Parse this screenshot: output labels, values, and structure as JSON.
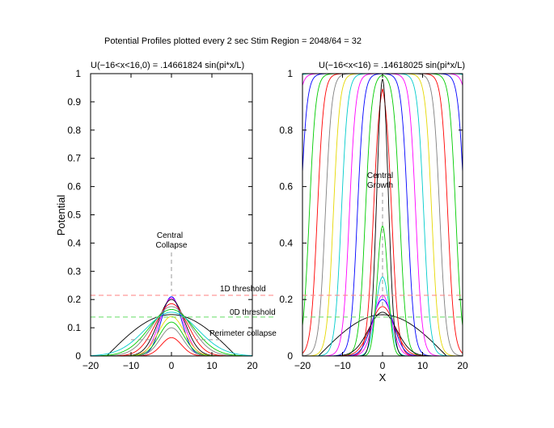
{
  "figure": {
    "suptitle": "Potential Profiles plotted every 2 sec  Stim Region = 2048/64 = 32",
    "colors": [
      "#000000",
      "#ff0000",
      "#00cc00",
      "#0000ff",
      "#ff00ff",
      "#00cccc",
      "#e6d800",
      "#808080"
    ]
  },
  "chart_data": [
    {
      "type": "line",
      "title": "U(−16<x<16,0) = .14661824 sin(pi*x/L)",
      "xlabel": "",
      "ylabel": "Potential",
      "xlim": [
        -20,
        20
      ],
      "ylim": [
        0,
        1
      ],
      "xticks": [
        "−20",
        "−10",
        "0",
        "10",
        "20"
      ],
      "yticks": [
        "0",
        "0.1",
        "0.2",
        "0.3",
        "0.4",
        "0.5",
        "0.6",
        "0.7",
        "0.8",
        "0.9",
        "1"
      ],
      "grid": false,
      "initial_profile": {
        "amplitude": 0.14661824,
        "half_width": 16
      },
      "profiles": [
        {
          "peak": 0.21,
          "sigma": 2.5,
          "color": "#0000ff"
        },
        {
          "peak": 0.205,
          "sigma": 2.9,
          "color": "#ff00ff"
        },
        {
          "peak": 0.2,
          "sigma": 3.3,
          "color": "#000000"
        },
        {
          "peak": 0.185,
          "sigma": 4.0,
          "color": "#ff0000"
        },
        {
          "peak": 0.175,
          "sigma": 4.8,
          "color": "#808080"
        },
        {
          "peak": 0.165,
          "sigma": 5.5,
          "color": "#00cc00"
        },
        {
          "peak": 0.155,
          "sigma": 6.5,
          "color": "#00cccc"
        },
        {
          "peak": 0.14,
          "sigma": 3.2,
          "color": "#e6d800"
        },
        {
          "peak": 0.12,
          "sigma": 3.0,
          "color": "#00cc00"
        },
        {
          "peak": 0.1,
          "sigma": 2.8,
          "color": "#808080"
        },
        {
          "peak": 0.065,
          "sigma": 2.5,
          "color": "#ff0000"
        }
      ],
      "reference_lines": [
        {
          "label": "1D threshold",
          "y": 0.215,
          "color": "#ff8080"
        },
        {
          "label": "0D threshold",
          "y": 0.138,
          "color": "#66dd66"
        }
      ],
      "annotations": {
        "central_collapse": {
          "line1": "Central",
          "line2": "Collapse",
          "x": 0,
          "y": 0.36
        },
        "perimeter_collapse": {
          "label": "Perimeter collapse",
          "x": 13,
          "y": 0.075
        }
      }
    },
    {
      "type": "line",
      "title": "U(−16<x<16) = .14618025 sin(pi*x/L)",
      "xlabel": "X",
      "ylabel": "",
      "xlim": [
        -20,
        20
      ],
      "ylim": [
        0,
        1
      ],
      "xticks": [
        "−20",
        "−10",
        "0",
        "10",
        "20"
      ],
      "yticks": [
        "0",
        "0.2",
        "0.4",
        "0.6",
        "0.8",
        "1"
      ],
      "grid": false,
      "initial_profile": {
        "amplitude": 0.14618025,
        "half_width": 16
      },
      "profiles": [
        {
          "peak": 0.155,
          "sigma": 3.5,
          "color": "#000000"
        },
        {
          "peak": 0.175,
          "sigma": 3.0,
          "color": "#ff0000"
        },
        {
          "peak": 0.2,
          "sigma": 2.6,
          "color": "#0000ff"
        },
        {
          "peak": 0.215,
          "sigma": 2.2,
          "color": "#ff00ff"
        },
        {
          "peak": 0.28,
          "sigma": 1.7,
          "color": "#00cccc"
        },
        {
          "peak": 0.46,
          "sigma": 1.3,
          "color": "#00cc00"
        },
        {
          "peak": 0.98,
          "sigma": 1.4,
          "color": "#000000"
        }
      ],
      "plateaus": [
        {
          "half_width": 2.3,
          "color": "#ff0000"
        },
        {
          "half_width": 4.3,
          "color": "#00cc00"
        },
        {
          "half_width": 6.3,
          "color": "#0000ff"
        },
        {
          "half_width": 8.3,
          "color": "#ff00ff"
        },
        {
          "half_width": 10.3,
          "color": "#00cccc"
        },
        {
          "half_width": 12.3,
          "color": "#e6d800"
        },
        {
          "half_width": 14.3,
          "color": "#808080"
        },
        {
          "half_width": 16.3,
          "color": "#ff0000"
        },
        {
          "half_width": 18.3,
          "color": "#00cc00"
        },
        {
          "half_width": 20.5,
          "color": "#0000ff"
        },
        {
          "half_width": 22.5,
          "color": "#ff00ff"
        },
        {
          "half_width": 24.5,
          "color": "#00cccc"
        },
        {
          "half_width": 26.5,
          "color": "#808080"
        },
        {
          "half_width": 29.0,
          "color": "#e6d800"
        }
      ],
      "reference_lines": [
        {
          "y": 0.215,
          "color": "#ff8080"
        },
        {
          "y": 0.138,
          "color": "#66dd66"
        }
      ],
      "annotations": {
        "central_growth": {
          "line1": "Central",
          "line2": "Growth",
          "x": 0,
          "y": 0.6
        }
      }
    }
  ]
}
